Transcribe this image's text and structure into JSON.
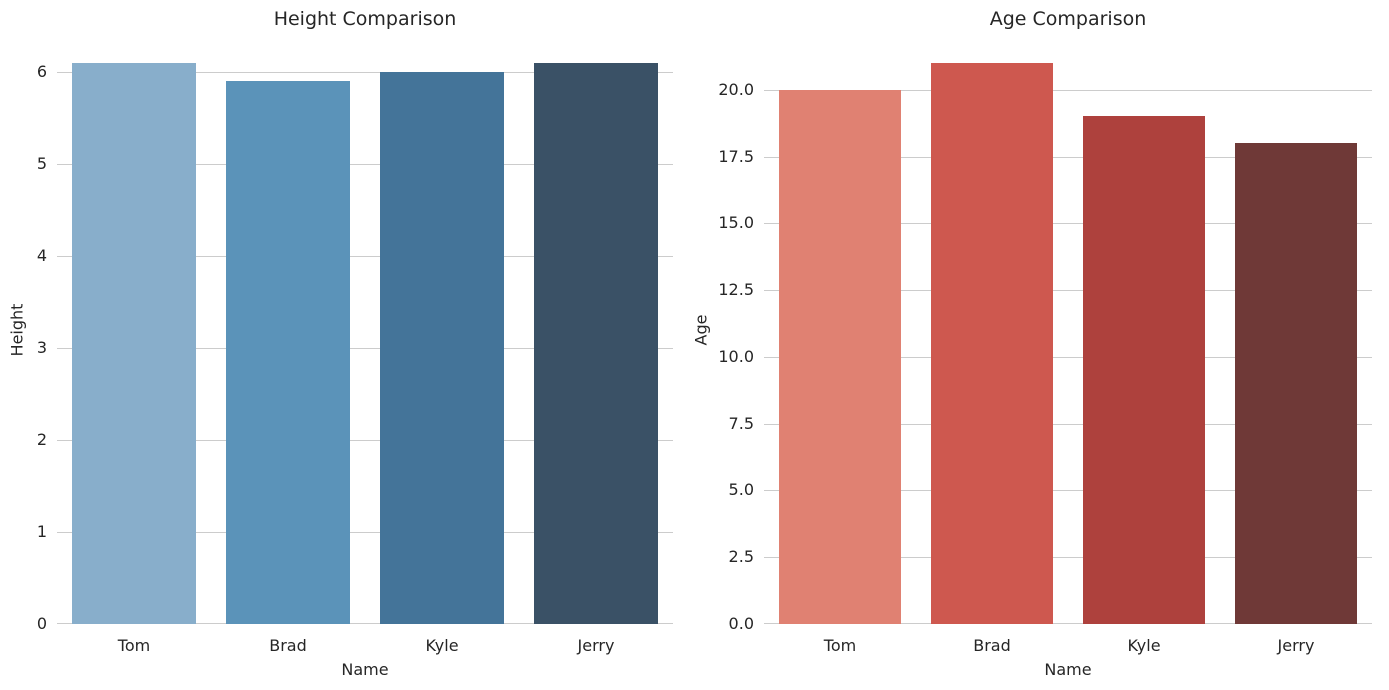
{
  "figure": {
    "background": "#ffffff",
    "grid_color": "#cccccc",
    "text_color": "#262626"
  },
  "chart_data": [
    {
      "type": "bar",
      "title": "Height Comparison",
      "xlabel": "Name",
      "ylabel": "Height",
      "categories": [
        "Tom",
        "Brad",
        "Kyle",
        "Jerry"
      ],
      "values": [
        6.1,
        5.9,
        6.0,
        6.1
      ],
      "bar_colors": [
        "#88aecb",
        "#5b93b9",
        "#447499",
        "#3a5166"
      ],
      "palette": "Blues_d",
      "yticks": [
        0,
        1,
        2,
        3,
        4,
        5,
        6
      ],
      "ytick_labels": [
        "0",
        "1",
        "2",
        "3",
        "4",
        "5",
        "6"
      ],
      "ylim": [
        0,
        6.405
      ],
      "grid": "horizontal",
      "legend": "none"
    },
    {
      "type": "bar",
      "title": "Age Comparison",
      "xlabel": "Name",
      "ylabel": "Age",
      "categories": [
        "Tom",
        "Brad",
        "Kyle",
        "Jerry"
      ],
      "values": [
        20,
        21,
        19,
        18
      ],
      "bar_colors": [
        "#e08172",
        "#ce584f",
        "#ae413d",
        "#6f3937"
      ],
      "palette": "Reds_d",
      "yticks": [
        0,
        2.5,
        5,
        7.5,
        10,
        12.5,
        15,
        17.5,
        20
      ],
      "ytick_labels": [
        "0.0",
        "2.5",
        "5.0",
        "7.5",
        "10.0",
        "12.5",
        "15.0",
        "17.5",
        "20.0"
      ],
      "ylim": [
        0,
        22.05
      ],
      "grid": "horizontal",
      "legend": "none"
    }
  ]
}
